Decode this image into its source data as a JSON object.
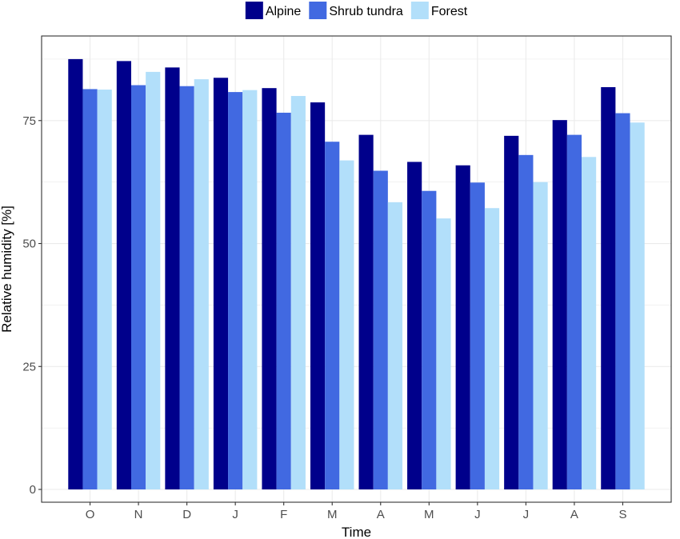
{
  "chart_data": {
    "type": "bar",
    "title": "",
    "xlabel": "Time",
    "ylabel": "Relative humidity [%]",
    "categories": [
      "O",
      "N",
      "D",
      "J",
      "F",
      "M",
      "A",
      "M",
      "J",
      "J",
      "A",
      "S"
    ],
    "series": [
      {
        "name": "Alpine",
        "color": "#00008b",
        "values": [
          87.5,
          87.1,
          85.8,
          83.7,
          81.6,
          78.7,
          72.1,
          66.6,
          65.9,
          71.9,
          75.1,
          81.8
        ]
      },
      {
        "name": "Shrub tundra",
        "color": "#4169e1",
        "values": [
          81.4,
          82.2,
          82.0,
          80.8,
          76.6,
          70.7,
          64.8,
          60.7,
          62.4,
          68.0,
          72.1,
          76.5
        ]
      },
      {
        "name": "Forest",
        "color": "#b2dffa",
        "values": [
          81.3,
          84.9,
          83.4,
          81.2,
          80.0,
          66.9,
          58.4,
          55.1,
          57.2,
          62.5,
          67.6,
          74.6
        ]
      }
    ],
    "ylim": [
      -2.6,
      92.2
    ],
    "yticks": [
      0,
      25,
      50,
      75
    ],
    "grid": true,
    "legend_position": "top"
  }
}
